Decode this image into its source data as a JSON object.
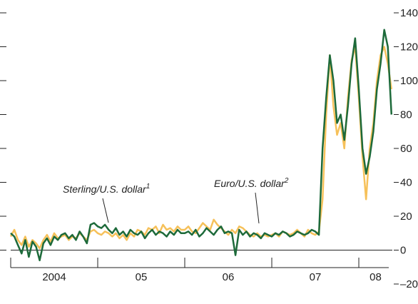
{
  "chart_data": {
    "type": "line",
    "x": [
      2004,
      2004.042,
      2004.083,
      2004.125,
      2004.167,
      2004.208,
      2004.25,
      2004.292,
      2004.333,
      2004.375,
      2004.417,
      2004.458,
      2004.5,
      2004.542,
      2004.583,
      2004.625,
      2004.667,
      2004.708,
      2004.75,
      2004.792,
      2004.833,
      2004.875,
      2004.917,
      2004.958,
      2005,
      2005.042,
      2005.083,
      2005.125,
      2005.167,
      2005.208,
      2005.25,
      2005.292,
      2005.333,
      2005.375,
      2005.417,
      2005.458,
      2005.5,
      2005.542,
      2005.583,
      2005.625,
      2005.667,
      2005.708,
      2005.75,
      2005.792,
      2005.833,
      2005.875,
      2005.917,
      2005.958,
      2006,
      2006.042,
      2006.083,
      2006.125,
      2006.167,
      2006.208,
      2006.25,
      2006.292,
      2006.333,
      2006.375,
      2006.417,
      2006.458,
      2006.5,
      2006.542,
      2006.583,
      2006.625,
      2006.667,
      2006.708,
      2006.75,
      2006.792,
      2006.833,
      2006.875,
      2006.917,
      2006.958,
      2007,
      2007.042,
      2007.083,
      2007.125,
      2007.167,
      2007.208,
      2007.25,
      2007.292,
      2007.333,
      2007.375,
      2007.417,
      2007.458,
      2007.5,
      2007.542,
      2007.583,
      2007.625,
      2007.667,
      2007.708,
      2007.75,
      2007.792,
      2007.833,
      2007.875,
      2007.917,
      2007.958,
      2008,
      2008.042,
      2008.083,
      2008.125,
      2008.167,
      2008.208,
      2008.25,
      2008.292,
      2008.333,
      2008.375
    ],
    "series": [
      {
        "name": "Euro/U.S. dollar",
        "color": "#f6c15a",
        "values": [
          8,
          12,
          6,
          3,
          8,
          2,
          6,
          4,
          1,
          6,
          9,
          5,
          10,
          7,
          8,
          9,
          6,
          8,
          7,
          10,
          8,
          6,
          11,
          12,
          10,
          9,
          11,
          10,
          8,
          10,
          7,
          9,
          6,
          10,
          8,
          12,
          11,
          9,
          13,
          12,
          14,
          10,
          15,
          12,
          13,
          11,
          14,
          12,
          12,
          14,
          11,
          10,
          13,
          16,
          14,
          12,
          18,
          15,
          13,
          11,
          9,
          12,
          10,
          14,
          13,
          11,
          9,
          8,
          10,
          8,
          9,
          8,
          9,
          10,
          8,
          11,
          10,
          9,
          10,
          12,
          10,
          8,
          12,
          10,
          9,
          11,
          30,
          80,
          115,
          85,
          68,
          75,
          60,
          90,
          112,
          120,
          90,
          55,
          30,
          60,
          75,
          100,
          115,
          120,
          110,
          95
        ]
      },
      {
        "name": "Sterling/U.S. dollar",
        "color": "#1d6a3a",
        "values": [
          10,
          8,
          3,
          -2,
          6,
          -4,
          5,
          2,
          -6,
          4,
          7,
          3,
          8,
          6,
          9,
          10,
          7,
          9,
          6,
          11,
          8,
          4,
          15,
          16,
          14,
          13,
          15,
          12,
          10,
          13,
          9,
          11,
          8,
          12,
          10,
          9,
          11,
          7,
          10,
          12,
          9,
          11,
          10,
          8,
          11,
          9,
          12,
          10,
          10,
          11,
          9,
          12,
          8,
          10,
          13,
          11,
          9,
          12,
          14,
          10,
          11,
          10,
          -3,
          12,
          9,
          11,
          8,
          10,
          9,
          7,
          10,
          9,
          8,
          10,
          9,
          11,
          10,
          8,
          9,
          11,
          10,
          9,
          10,
          12,
          11,
          9,
          60,
          90,
          115,
          100,
          75,
          80,
          65,
          85,
          110,
          125,
          95,
          60,
          45,
          55,
          70,
          95,
          110,
          130,
          120,
          80
        ]
      }
    ],
    "annotations": [
      {
        "text": "Sterling/U.S. dollar",
        "sup": "1"
      },
      {
        "text": "Euro/U.S. dollar",
        "sup": "2"
      }
    ],
    "xlim": [
      2004,
      2008.385
    ],
    "xticks": [
      2004,
      2005,
      2006,
      2007,
      2008
    ],
    "xtick_labels": [
      "2004",
      "05",
      "06",
      "07",
      "08"
    ],
    "ylim": [
      -20,
      140
    ],
    "yticks": [
      {
        "value": -20,
        "label": "–20"
      },
      0,
      20,
      40,
      60,
      80,
      100,
      120,
      140
    ]
  }
}
